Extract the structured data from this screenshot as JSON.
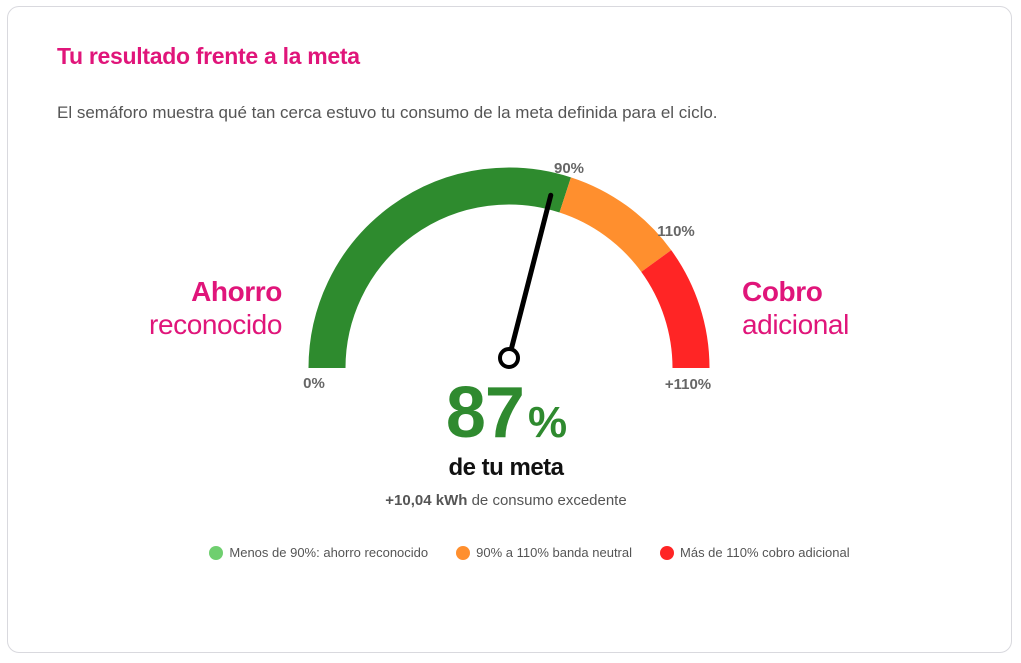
{
  "card": {
    "title": "Tu resultado frente a la meta",
    "subtitle": "El semáforo muestra qué tan cerca estuvo tu consumo de la meta definida para el ciclo."
  },
  "labels": {
    "left_strong": "Ahorro",
    "left_light": "reconocido",
    "right_strong": "Cobro",
    "right_light": "adicional"
  },
  "gauge": {
    "ticks": {
      "min": "0%",
      "mid": "90%",
      "high": "110%",
      "max": "+110%"
    },
    "zone_fractions": [
      0.6,
      0.8,
      1.0
    ],
    "needle_fraction": 0.58,
    "colors": {
      "green": "#2e8b2e",
      "orange": "#ff8f2e",
      "red": "#ff2525",
      "needle": "#000000"
    }
  },
  "result": {
    "value": "87",
    "unit": "%",
    "caption": "de tu meta",
    "detail_amount": "+10,04 kWh",
    "detail_text": " de consumo excedente"
  },
  "legend": [
    {
      "label": "Menos de 90%: ahorro reconocido",
      "color": "#6fcf6f"
    },
    {
      "label": "90% a 110% banda neutral",
      "color": "#ff8f2e"
    },
    {
      "label": "Más de 110% cobro adicional",
      "color": "#ff2525"
    }
  ]
}
